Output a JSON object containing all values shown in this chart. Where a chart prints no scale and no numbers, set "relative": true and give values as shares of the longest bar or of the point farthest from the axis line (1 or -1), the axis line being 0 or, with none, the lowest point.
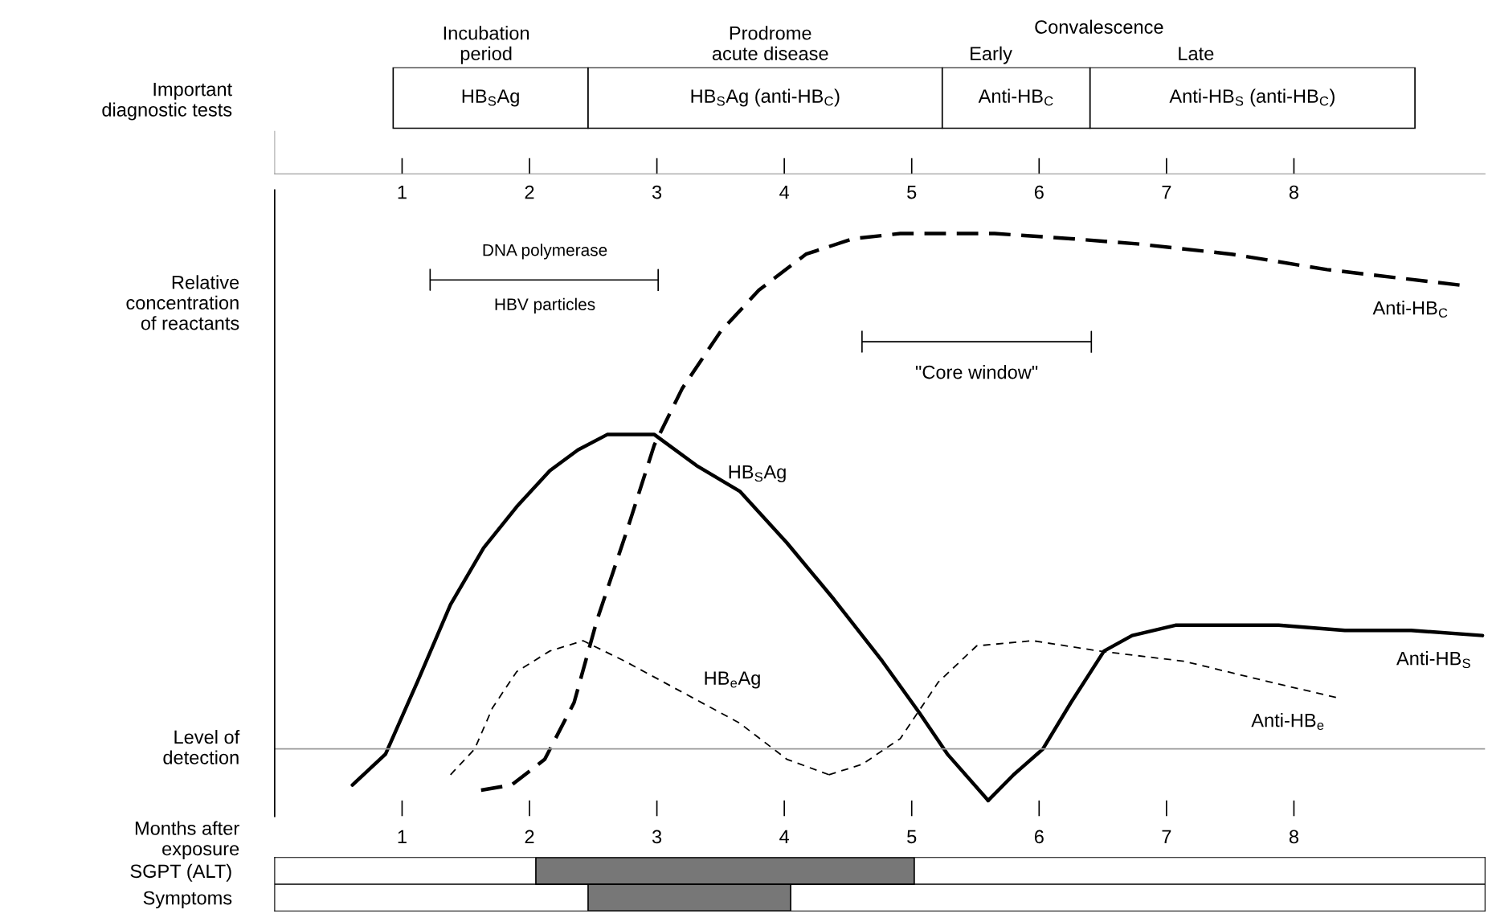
{
  "chart_data": [
    {
      "type": "bar",
      "orientation": "horizontal",
      "categories": [
        "Important\ndiagnostic tests"
      ],
      "xlim": [
        0,
        9.5
      ],
      "xticks": [
        1,
        2,
        3,
        4,
        5,
        6,
        7,
        8
      ],
      "series": [
        {
          "values": [
            1.53
          ],
          "base": [
            0.93
          ],
          "color": "#ffffff",
          "value_labels": [
            "HB$_{S}$Ag"
          ]
        },
        {
          "values": [
            2.78
          ],
          "base": [
            2.46
          ],
          "color": "#ffffff",
          "value_labels": [
            "HB$_{S}$Ag (anti-HB$_{C}$)"
          ]
        },
        {
          "values": [
            1.16
          ],
          "base": [
            5.24
          ],
          "color": "#ffffff",
          "value_labels": [
            "Anti-HB$_{C}$"
          ]
        },
        {
          "values": [
            2.55
          ],
          "base": [
            6.4
          ],
          "color": "#ffffff",
          "value_labels": [
            "Anti-HB$_{S}$ (anti-HB$_{C}$)"
          ]
        }
      ],
      "annotations": [
        "Incubation\nperiod",
        "Prodrome\nacute disease",
        "Convalescence",
        "Early",
        "Late"
      ]
    },
    {
      "type": "line",
      "relative": true,
      "xlim": [
        0,
        9.5
      ],
      "xticks": [
        1,
        2,
        3,
        4,
        5,
        6,
        7,
        8
      ],
      "tick_labels": "x",
      "xlabel": "Months after\nexposure",
      "ylabel": "Relative\nconcentration\nof reactants",
      "series": [
        {
          "name": "HB$_{S}$Ag",
          "color": "#000000",
          "line_style": "solid",
          "x": [
            0.61,
            0.87,
            1.12,
            1.38,
            1.64,
            1.9,
            2.16,
            2.38,
            2.61,
            2.98,
            3.31,
            3.65,
            4.02,
            4.39,
            4.77,
            5.06,
            5.28,
            5.6
          ],
          "values": [
            -0.07,
            -0.01,
            0.13,
            0.28,
            0.39,
            0.47,
            0.54,
            0.58,
            0.61,
            0.61,
            0.55,
            0.5,
            0.4,
            0.29,
            0.17,
            0.07,
            -0.01,
            -0.1
          ]
        },
        {
          "name": "Anti-HB$_{S}$",
          "color": "#000000",
          "line_style": "solid",
          "x": [
            5.6,
            5.8,
            6.03,
            6.25,
            6.51,
            6.73,
            7.07,
            7.44,
            7.88,
            8.4,
            8.92,
            9.48
          ],
          "values": [
            -0.1,
            -0.05,
            0.0,
            0.09,
            0.19,
            0.22,
            0.24,
            0.24,
            0.24,
            0.23,
            0.23,
            0.22
          ]
        },
        {
          "name": "Anti-HB$_{C}$",
          "color": "#000000",
          "line_style": "dashed",
          "x": [
            1.62,
            1.86,
            2.12,
            2.35,
            2.53,
            2.76,
            2.98,
            3.2,
            3.5,
            3.8,
            4.17,
            4.54,
            4.91,
            5.65,
            6.25,
            6.77,
            7.51,
            8.26,
            9.3
          ],
          "values": [
            -0.08,
            -0.07,
            -0.02,
            0.09,
            0.25,
            0.42,
            0.59,
            0.7,
            0.81,
            0.89,
            0.96,
            0.99,
            1.0,
            1.0,
            0.99,
            0.98,
            0.96,
            0.93,
            0.9
          ]
        },
        {
          "name": "HB$_{e}$Ag",
          "color": "#000000",
          "line_style": "dotted",
          "x": [
            1.38,
            1.57,
            1.71,
            1.9,
            2.16,
            2.42,
            2.75,
            3.2,
            3.65,
            4.02,
            4.35
          ],
          "values": [
            -0.05,
            0.0,
            0.08,
            0.15,
            0.19,
            0.21,
            0.17,
            0.11,
            0.05,
            -0.02,
            -0.05
          ]
        },
        {
          "name": "Anti-HB$_{e}$",
          "color": "#000000",
          "line_style": "dotted",
          "x": [
            4.35,
            4.61,
            4.91,
            5.21,
            5.51,
            5.95,
            6.47,
            7.14,
            7.81,
            8.33
          ],
          "values": [
            -0.05,
            -0.03,
            0.02,
            0.13,
            0.2,
            0.21,
            0.19,
            0.17,
            0.13,
            0.1
          ]
        }
      ],
      "ref_lines": [
        {
          "axis": "y",
          "value": 0,
          "label": "Level of\ndetection",
          "color": "#999999"
        }
      ],
      "annotations": [
        "DNA polymerase",
        "HBV particles",
        "\"Core window\""
      ]
    },
    {
      "type": "bar",
      "orientation": "horizontal",
      "categories": [
        "SGPT (ALT)",
        "Symptoms"
      ],
      "values": [
        2.97,
        1.59
      ],
      "base": [
        2.05,
        2.46
      ],
      "color": "#777777",
      "xlim": [
        0,
        9.5
      ],
      "tick_labels": "y"
    }
  ]
}
